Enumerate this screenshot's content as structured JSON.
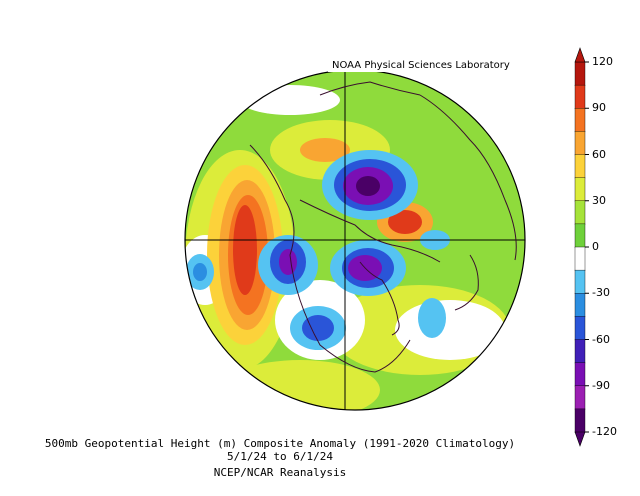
{
  "credit": "NOAA Physical Sciences Laboratory",
  "caption": {
    "line1": "500mb Geopotential Height (m) Composite Anomaly (1991-2020 Climatology)",
    "line2": "5/1/24  to 6/1/24",
    "line3": "NCEP/NCAR Reanalysis"
  },
  "colorbar": {
    "labels": [
      "120",
      "90",
      "60",
      "30",
      "0",
      "-30",
      "-60",
      "-90",
      "-120"
    ],
    "colors": [
      "#b5170e",
      "#e03a1a",
      "#f47321",
      "#f9a532",
      "#fcd23a",
      "#dcec3a",
      "#a6e33a",
      "#6fd13b",
      "#ffffff",
      "#55c3f2",
      "#2b8ee1",
      "#2a55d8",
      "#4020b8",
      "#7a0fb4",
      "#9b1fb2",
      "#4a0066"
    ]
  },
  "colors": {
    "background_anomaly": "#8fdb3c",
    "land_outline": "#3a0f2e",
    "grid": "#000000"
  }
}
